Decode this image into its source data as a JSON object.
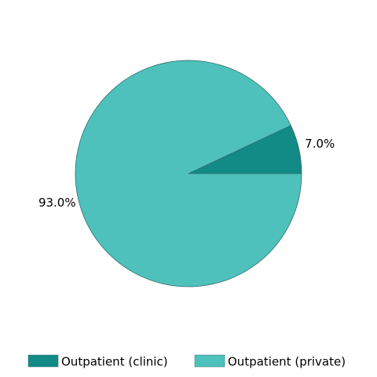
{
  "chart_data": {
    "type": "pie",
    "categories": [
      "Outpatient (clinic)",
      "Outpatient (private)"
    ],
    "values": [
      7.0,
      93.0
    ],
    "value_labels": [
      "7.0%",
      "93.0%"
    ],
    "colors": [
      "#128a86",
      "#4fc1bd"
    ],
    "start_angle": 0,
    "direction": "counterclockwise",
    "legend": "bottom"
  }
}
